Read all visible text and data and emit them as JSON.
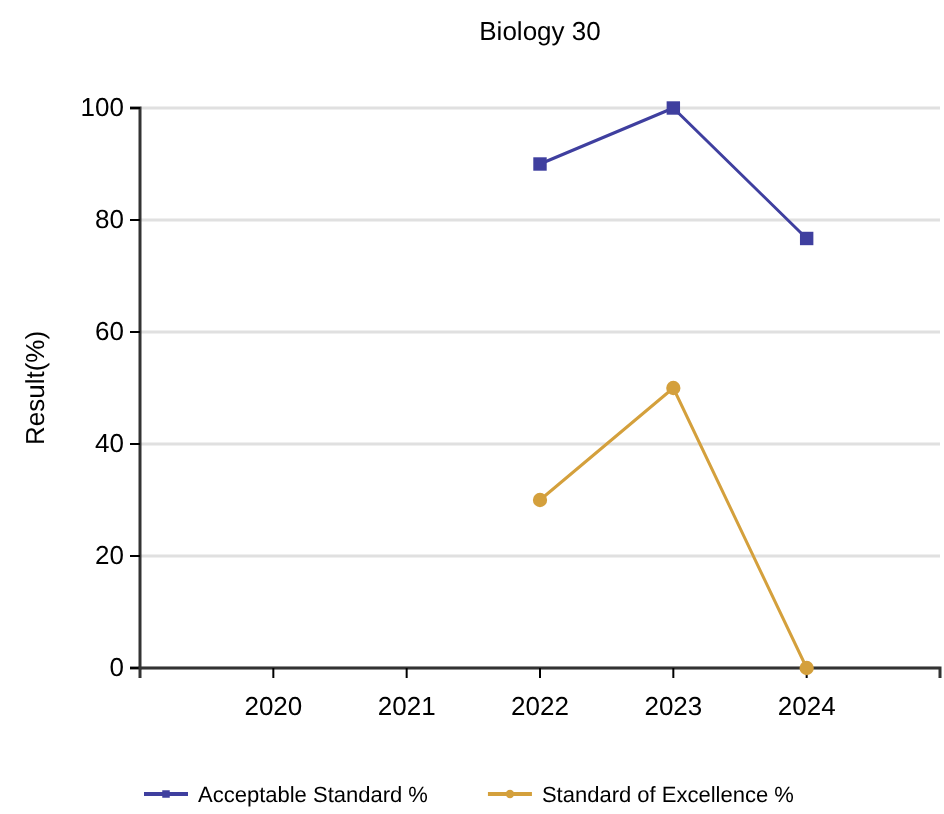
{
  "chart_data": {
    "type": "line",
    "title": "Biology 30",
    "ylabel": "Result(%)",
    "categories": [
      "2020",
      "2021",
      "2022",
      "2023",
      "2024"
    ],
    "series": [
      {
        "name": "Acceptable Standard %",
        "color": "#3f3f9f",
        "marker": "square",
        "values": [
          null,
          null,
          90,
          100,
          76.7
        ]
      },
      {
        "name": "Standard of Excellence %",
        "color": "#d4a03c",
        "marker": "circle",
        "values": [
          null,
          null,
          30,
          50,
          0
        ]
      }
    ],
    "ylim": [
      0,
      100
    ],
    "yticks": [
      0,
      20,
      40,
      60,
      80,
      100
    ],
    "grid": "y",
    "legend": "bottom"
  }
}
